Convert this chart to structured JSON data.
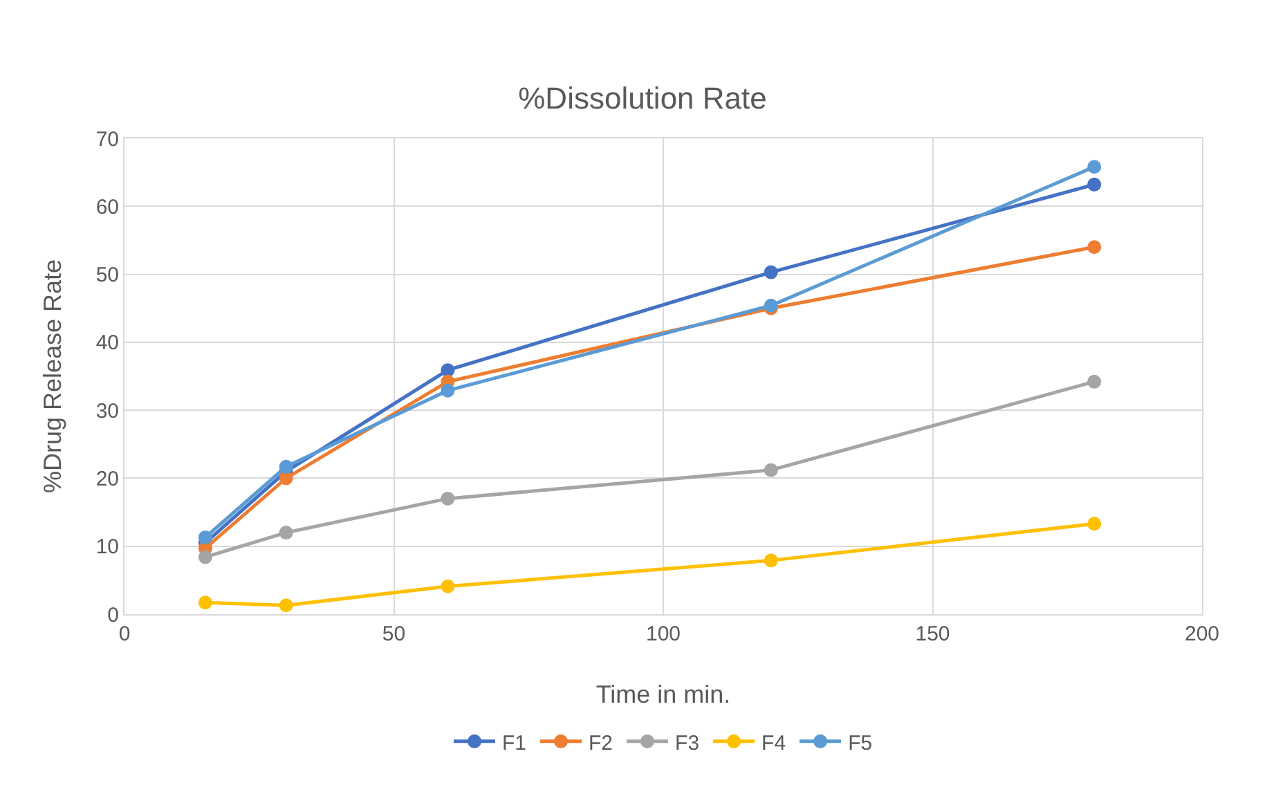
{
  "chart_data": {
    "type": "line",
    "title": "%Dissolution Rate",
    "xlabel": "Time in min.",
    "ylabel": "%Drug Release Rate",
    "x": [
      15,
      30,
      60,
      120,
      180
    ],
    "series": [
      {
        "name": "F1",
        "color": "#4472c4",
        "values": [
          10.5,
          21,
          35.9,
          50.3,
          63.2
        ]
      },
      {
        "name": "F2",
        "color": "#ed7d31",
        "values": [
          9.7,
          20,
          34.2,
          45,
          54
        ]
      },
      {
        "name": "F3",
        "color": "#a5a5a5",
        "values": [
          8.4,
          12,
          17,
          21.2,
          34.2
        ]
      },
      {
        "name": "F4",
        "color": "#ffc000",
        "values": [
          1.7,
          1.3,
          4.1,
          7.9,
          13.3
        ]
      },
      {
        "name": "F5",
        "color": "#5b9bd5",
        "values": [
          11.3,
          21.7,
          32.9,
          45.4,
          65.8
        ]
      }
    ],
    "xlim": [
      0,
      200
    ],
    "xticks": [
      0,
      50,
      100,
      150,
      200
    ],
    "ylim": [
      0,
      70
    ],
    "yticks": [
      0,
      10,
      20,
      30,
      40,
      50,
      60,
      70
    ],
    "grid": true,
    "legend": "bottom",
    "marker": "circle",
    "line_style": "solid"
  }
}
